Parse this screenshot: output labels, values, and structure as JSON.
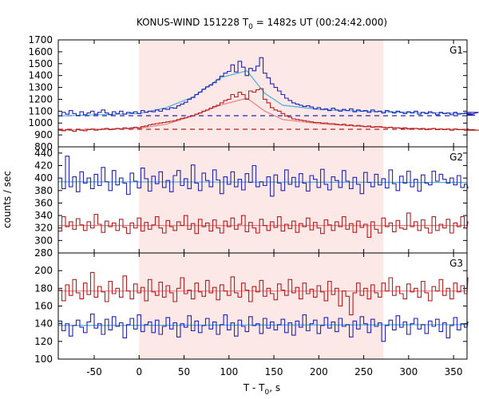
{
  "chart_data": {
    "type": "line",
    "title_main": "KONUS-WIND 151228 T",
    "title_sub": "0",
    "title_rest": " = 1482s UT (00:24:42.000)",
    "xlabel_main": "T - T",
    "xlabel_sub": "0",
    "xlabel_rest": ", s",
    "ylabel": "counts / sec",
    "xlim": [
      -90,
      365
    ],
    "xticks": [
      -50,
      0,
      50,
      100,
      150,
      200,
      250,
      300,
      350
    ],
    "highlight_range": [
      0,
      272
    ],
    "bin_width": 4,
    "colors": {
      "blue": "#2323b4",
      "red": "#b41e1e",
      "fit_blue": "#4ab0d8",
      "fit_red": "#e88080",
      "highlight": "#fde8e8"
    },
    "panels": [
      {
        "label": "G1",
        "ylim": [
          800,
          1700
        ],
        "yticks": [
          800,
          900,
          1000,
          1100,
          1200,
          1300,
          1400,
          1500,
          1600,
          1700
        ],
        "series": [
          {
            "color": "blue",
            "x_start": -90,
            "values": [
              1060,
              1090,
              1075,
              1105,
              1080,
              1065,
              1095,
              1070,
              1085,
              1100,
              1075,
              1090,
              1110,
              1085,
              1070,
              1095,
              1080,
              1100,
              1075,
              1090,
              1085,
              1095,
              1080,
              1105,
              1090,
              1100,
              1095,
              1110,
              1100,
              1120,
              1115,
              1130,
              1125,
              1145,
              1160,
              1175,
              1200,
              1215,
              1240,
              1260,
              1285,
              1305,
              1320,
              1340,
              1365,
              1395,
              1420,
              1435,
              1490,
              1430,
              1520,
              1470,
              1400,
              1460,
              1440,
              1480,
              1550,
              1420,
              1380,
              1330,
              1300,
              1270,
              1240,
              1210,
              1190,
              1170,
              1160,
              1150,
              1140,
              1145,
              1135,
              1120,
              1130,
              1115,
              1120,
              1105,
              1125,
              1110,
              1100,
              1115,
              1105,
              1120,
              1095,
              1110,
              1100,
              1105,
              1090,
              1110,
              1095,
              1100,
              1085,
              1105,
              1095,
              1085,
              1100,
              1090,
              1080,
              1095,
              1085,
              1100,
              1075,
              1090,
              1080,
              1095,
              1085,
              1070,
              1090,
              1080,
              1085,
              1070,
              1090,
              1075,
              1080,
              1085,
              1070,
              1080,
              1065,
              1090
            ]
          },
          {
            "color": "red",
            "x_start": -90,
            "values": [
              940,
              935,
              945,
              940,
              930,
              945,
              940,
              935,
              945,
              950,
              940,
              945,
              950,
              955,
              945,
              950,
              955,
              950,
              960,
              955,
              960,
              965,
              960,
              970,
              975,
              985,
              990,
              995,
              1000,
              1005,
              1010,
              1015,
              1020,
              1030,
              1040,
              1045,
              1055,
              1060,
              1075,
              1085,
              1100,
              1110,
              1125,
              1140,
              1150,
              1170,
              1190,
              1200,
              1240,
              1220,
              1260,
              1240,
              1200,
              1270,
              1260,
              1280,
              1290,
              1200,
              1170,
              1130,
              1110,
              1100,
              1080,
              1060,
              1050,
              1035,
              1030,
              1025,
              1020,
              1015,
              1010,
              1005,
              1005,
              1000,
              1000,
              995,
              995,
              990,
              985,
              990,
              980,
              985,
              975,
              980,
              975,
              970,
              975,
              965,
              970,
              970,
              965,
              960,
              965,
              960,
              960,
              955,
              960,
              950,
              955,
              955,
              950,
              955,
              945,
              950,
              955,
              945,
              950,
              945,
              950,
              940,
              950,
              945,
              945,
              940,
              950,
              940,
              945,
              940,
              940
            ]
          }
        ],
        "fits": [
          {
            "color": "fit_blue",
            "x": [
              -90,
              0,
              30,
              60,
              90,
              120,
              140,
              160,
              200,
              250,
              300,
              365
            ],
            "y": [
              1060,
              1080,
              1130,
              1220,
              1380,
              1440,
              1250,
              1150,
              1115,
              1100,
              1090,
              1080
            ]
          },
          {
            "color": "fit_red",
            "x": [
              -90,
              0,
              30,
              60,
              90,
              120,
              140,
              160,
              200,
              250,
              300,
              365
            ],
            "y": [
              940,
              955,
              990,
              1060,
              1150,
              1210,
              1100,
              1030,
              995,
              970,
              955,
              945
            ]
          }
        ],
        "baselines": [
          {
            "color": "blue",
            "y": 1062
          },
          {
            "color": "red",
            "y": 948
          }
        ]
      },
      {
        "label": "G2",
        "ylim": [
          280,
          450
        ],
        "yticks": [
          280,
          300,
          320,
          340,
          360,
          380,
          400,
          420,
          440
        ],
        "series": [
          {
            "color": "blue",
            "x_start": -90,
            "values": [
              400,
              383,
              435,
              386,
              402,
              378,
              410,
              392,
              400,
              383,
              406,
              388,
              417,
              394,
              380,
              412,
              389,
              400,
              392,
              374,
              408,
              395,
              384,
              416,
              399,
              379,
              403,
              391,
              410,
              385,
              396,
              378,
              404,
              412,
              388,
              399,
              383,
              421,
              392,
              380,
              408,
              396,
              386,
              413,
              397,
              375,
              402,
              390,
              410,
              386,
              398,
              381,
              407,
              393,
              420,
              386,
              394,
              388,
              402,
              371,
              405,
              392,
              380,
              413,
              390,
              401,
              386,
              407,
              392,
              379,
              404,
              398,
              385,
              414,
              390,
              381,
              402,
              396,
              385,
              412,
              395,
              383,
              401,
              390,
              375,
              409,
              393,
              386,
              406,
              389,
              399,
              384,
              413,
              391,
              380,
              403,
              392,
              411,
              386,
              398,
              379,
              405,
              392,
              389,
              411,
              395,
              406,
              398,
              392,
              400,
              389,
              404,
              385,
              390,
              384
            ]
          },
          {
            "color": "red",
            "x_start": -90,
            "values": [
              315,
              338,
              322,
              330,
              318,
              335,
              325,
              316,
              330,
              320,
              342,
              326,
              313,
              331,
              322,
              328,
              316,
              334,
              321,
              311,
              328,
              320,
              336,
              315,
              329,
              318,
              325,
              338,
              320,
              312,
              332,
              322,
              316,
              330,
              324,
              340,
              318,
              327,
              311,
              334,
              322,
              328,
              315,
              333,
              320,
              312,
              331,
              322,
              336,
              318,
              326,
              340,
              314,
              329,
              320,
              312,
              334,
              324,
              316,
              330,
              321,
              338,
              315,
              326,
              319,
              331,
              313,
              327,
              322,
              336,
              317,
              329,
              320,
              311,
              333,
              325,
              316,
              330,
              322,
              338,
              318,
              327,
              313,
              331,
              321,
              326,
              305,
              330,
              318,
              312,
              336,
              322,
              328,
              314,
              332,
              320,
              318,
              344,
              322,
              330,
              316,
              333,
              320,
              312,
              338,
              316,
              326,
              320,
              334,
              312,
              328,
              322,
              338,
              320,
              330
            ]
          }
        ],
        "fits": [
          {
            "color": "fit_blue",
            "x": [
              -90,
              365
            ],
            "y": [
              394,
              393
            ]
          },
          {
            "color": "fit_red",
            "x": [
              -90,
              365
            ],
            "y": [
              324,
              324
            ]
          }
        ],
        "baselines": []
      },
      {
        "label": "G3",
        "ylim": [
          100,
          220
        ],
        "yticks": [
          100,
          120,
          140,
          160,
          180,
          200
        ],
        "series": [
          {
            "color": "blue",
            "x_start": -90,
            "values": [
              143,
              132,
              140,
              126,
              138,
              144,
              136,
              130,
              142,
              151,
              135,
              140,
              128,
              145,
              133,
              148,
              137,
              141,
              124,
              139,
              146,
              134,
              150,
              131,
              139,
              142,
              130,
              144,
              128,
              137,
              147,
              134,
              141,
              125,
              140,
              136,
              149,
              132,
              143,
              130,
              138,
              146,
              134,
              142,
              128,
              139,
              150,
              133,
              141,
              126,
              144,
              137,
              131,
              148,
              138,
              140,
              129,
              146,
              135,
              142,
              133,
              139,
              145,
              130,
              141,
              127,
              143,
              136,
              150,
              132,
              140,
              144,
              129,
              138,
              147,
              135,
              142,
              131,
              146,
              137,
              139,
              125,
              143,
              134,
              148,
              140,
              130,
              145,
              137,
              141,
              120,
              138,
              144,
              133,
              149,
              136,
              142,
              128,
              140,
              146,
              134,
              139,
              129,
              143,
              137,
              145,
              131,
              141,
              124,
              138,
              147,
              133,
              140,
              136,
              142
            ]
          },
          {
            "color": "red",
            "x_start": -90,
            "values": [
              178,
              166,
              184,
              172,
              190,
              175,
              168,
              186,
              173,
              198,
              170,
              182,
              176,
              165,
              188,
              174,
              180,
              170,
              194,
              177,
              168,
              185,
              175,
              181,
              166,
              190,
              176,
              172,
              187,
              170,
              183,
              175,
              165,
              180,
              192,
              174,
              178,
              168,
              186,
              176,
              171,
              189,
              175,
              181,
              167,
              184,
              177,
              172,
              193,
              175,
              170,
              186,
              178,
              165,
              182,
              176,
              189,
              171,
              180,
              174,
              167,
              185,
              178,
              172,
              190,
              175,
              181,
              168,
              186,
              174,
              179,
              170,
              183,
              176,
              166,
              188,
              173,
              180,
              160,
              177,
              171,
              150,
              175,
              186,
              172,
              180,
              168,
              184,
              175,
              170,
              186,
              177,
              192,
              172,
              182,
              174,
              168,
              185,
              176,
              180,
              170,
              188,
              175,
              166,
              182,
              177,
              190,
              172,
              180,
              168,
              186,
              176,
              183,
              174,
              192
            ]
          }
        ],
        "fits": [
          {
            "color": "fit_blue",
            "x": [
              -90,
              365
            ],
            "y": [
              138,
              139
            ]
          },
          {
            "color": "fit_red",
            "x": [
              -90,
              365
            ],
            "y": [
              177,
              177
            ]
          }
        ],
        "baselines": []
      }
    ]
  }
}
